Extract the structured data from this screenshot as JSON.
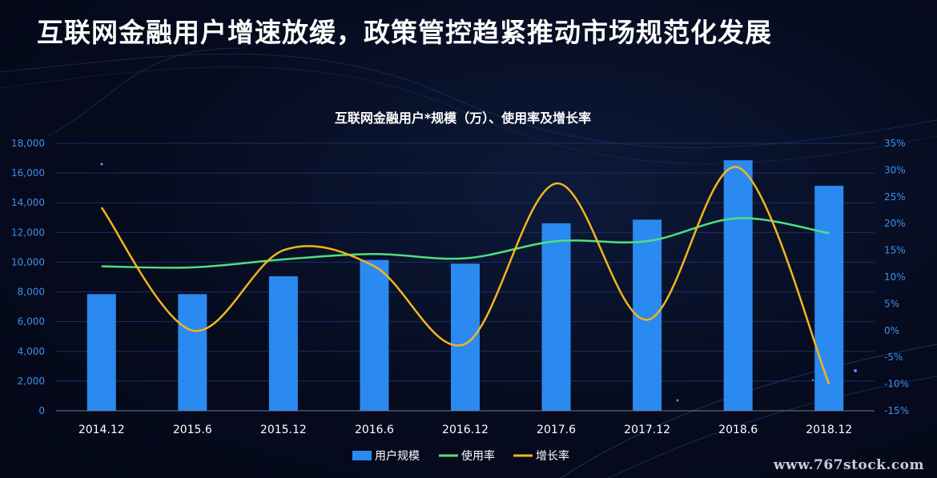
{
  "page": {
    "title": "互联网金融用户增速放缓，政策管控趋紧推动市场规范化发展",
    "watermark": "www.767stock.com"
  },
  "chart_data": {
    "type": "bar",
    "title": "互联网金融用户*规模（万）、使用率及增长率",
    "categories": [
      "2014.12",
      "2015.6",
      "2015.12",
      "2016.6",
      "2016.12",
      "2017.6",
      "2017.12",
      "2018.6",
      "2018.12"
    ],
    "left_axis": {
      "min": 0,
      "max": 18000,
      "step": 2000,
      "ticks": [
        "0",
        "2,000",
        "4,000",
        "6,000",
        "8,000",
        "10,000",
        "12,000",
        "14,000",
        "16,000",
        "18,000"
      ]
    },
    "right_axis": {
      "min": -15,
      "max": 35,
      "step": 5,
      "ticks": [
        "-15%",
        "-10%",
        "-5%",
        "0%",
        "5%",
        "10%",
        "15%",
        "20%",
        "25%",
        "30%",
        "35%"
      ]
    },
    "series": [
      {
        "name": "用户规模",
        "type": "bar",
        "axis": "left",
        "color": "#2b8aef",
        "values": [
          7850,
          7850,
          9050,
          10150,
          9900,
          12620,
          12860,
          16860,
          15140
        ]
      },
      {
        "name": "使用率",
        "type": "line",
        "axis": "right",
        "color": "#4fe07f",
        "values": [
          12.0,
          11.8,
          13.3,
          14.3,
          13.5,
          16.7,
          16.7,
          21.0,
          18.2
        ]
      },
      {
        "name": "增长率",
        "type": "line",
        "axis": "right",
        "color": "#f5b51b",
        "values": [
          23.0,
          0.0,
          15.0,
          12.0,
          -2.5,
          27.5,
          2.0,
          30.5,
          -10.0
        ]
      }
    ],
    "grid": true,
    "legend": "bottom"
  }
}
